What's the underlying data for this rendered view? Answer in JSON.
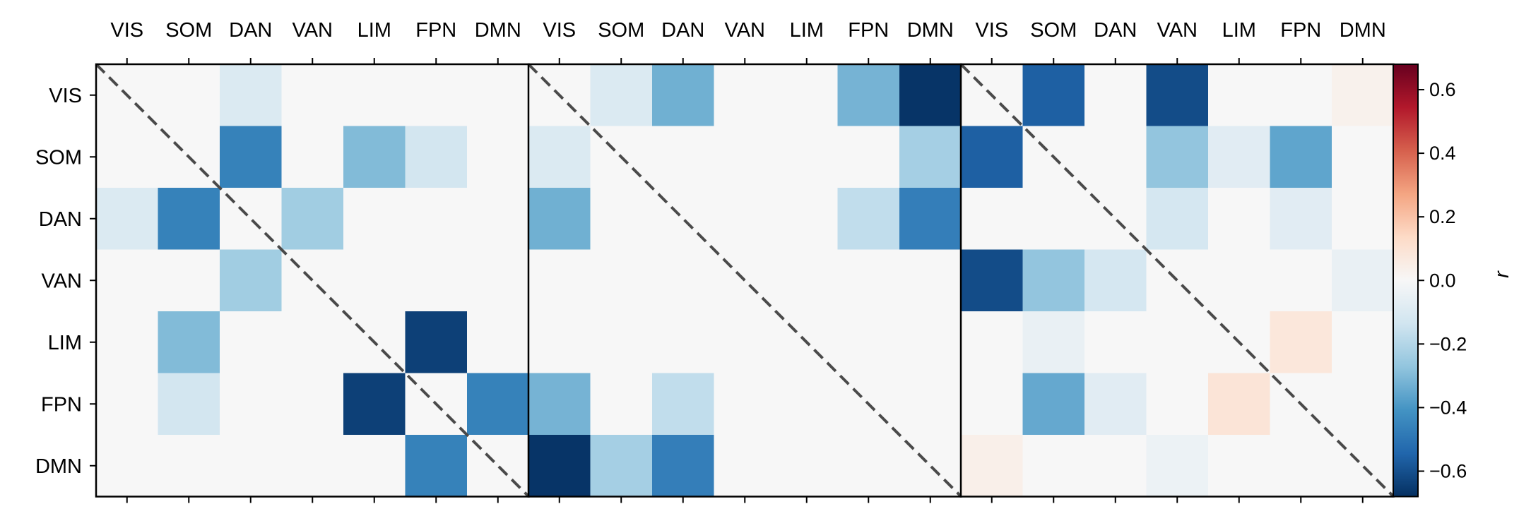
{
  "chart_data": {
    "type": "heatmap",
    "networks": [
      "VIS",
      "SOM",
      "DAN",
      "VAN",
      "LIM",
      "FPN",
      "DMN"
    ],
    "color_scale": {
      "label": "r",
      "vmin": -0.68,
      "vmax": 0.68,
      "ticks": [
        0.6,
        0.4,
        0.2,
        0.0,
        -0.2,
        -0.4,
        -0.6
      ],
      "tick_labels": [
        "0.6",
        "0.4",
        "0.2",
        "0.0",
        "−0.2",
        "−0.4",
        "−0.6"
      ],
      "colormap": "RdBu_r",
      "colors": [
        "#053061",
        "#2166ac",
        "#4393c3",
        "#92c5de",
        "#d1e5f0",
        "#f7f7f7",
        "#fddbc7",
        "#f4a582",
        "#d6604d",
        "#b2182b",
        "#67001f"
      ]
    },
    "panels": [
      {
        "matrix": [
          [
            0,
            0,
            -0.1,
            0,
            0,
            0,
            0
          ],
          [
            0,
            0,
            -0.46,
            0,
            -0.3,
            -0.13,
            0
          ],
          [
            -0.1,
            -0.46,
            0,
            -0.24,
            0,
            0,
            0
          ],
          [
            0,
            0,
            -0.24,
            0,
            0,
            0,
            0
          ],
          [
            0,
            -0.3,
            0,
            0,
            0,
            -0.64,
            0
          ],
          [
            0,
            -0.13,
            0,
            0,
            -0.64,
            0,
            -0.46
          ],
          [
            0,
            0,
            0,
            0,
            0,
            -0.46,
            0
          ]
        ]
      },
      {
        "matrix": [
          [
            0,
            -0.1,
            -0.33,
            0,
            0,
            -0.32,
            -0.67
          ],
          [
            -0.1,
            0,
            0,
            0,
            0,
            0,
            -0.23
          ],
          [
            -0.33,
            0,
            0,
            0,
            0,
            -0.17,
            -0.47
          ],
          [
            0,
            0,
            0,
            0,
            0,
            0,
            0
          ],
          [
            0,
            0,
            0,
            0,
            0,
            0,
            0
          ],
          [
            -0.32,
            0,
            -0.17,
            0,
            0,
            0,
            0
          ],
          [
            -0.67,
            -0.23,
            -0.47,
            0,
            0,
            0,
            0
          ]
        ]
      },
      {
        "matrix": [
          [
            0,
            -0.56,
            0,
            -0.61,
            0,
            0,
            0.03
          ],
          [
            -0.56,
            0,
            0,
            -0.27,
            -0.08,
            -0.36,
            0
          ],
          [
            0,
            0,
            0,
            -0.12,
            0,
            -0.08,
            0
          ],
          [
            -0.61,
            -0.27,
            -0.12,
            0,
            0,
            0,
            -0.05
          ],
          [
            0,
            -0.05,
            0,
            0,
            0,
            0.08,
            0
          ],
          [
            0,
            -0.35,
            -0.08,
            0,
            0.09,
            0,
            0
          ],
          [
            0.04,
            0,
            0,
            -0.04,
            0,
            0,
            0
          ]
        ]
      }
    ],
    "diagonal_style": "dashed",
    "grid": false
  }
}
